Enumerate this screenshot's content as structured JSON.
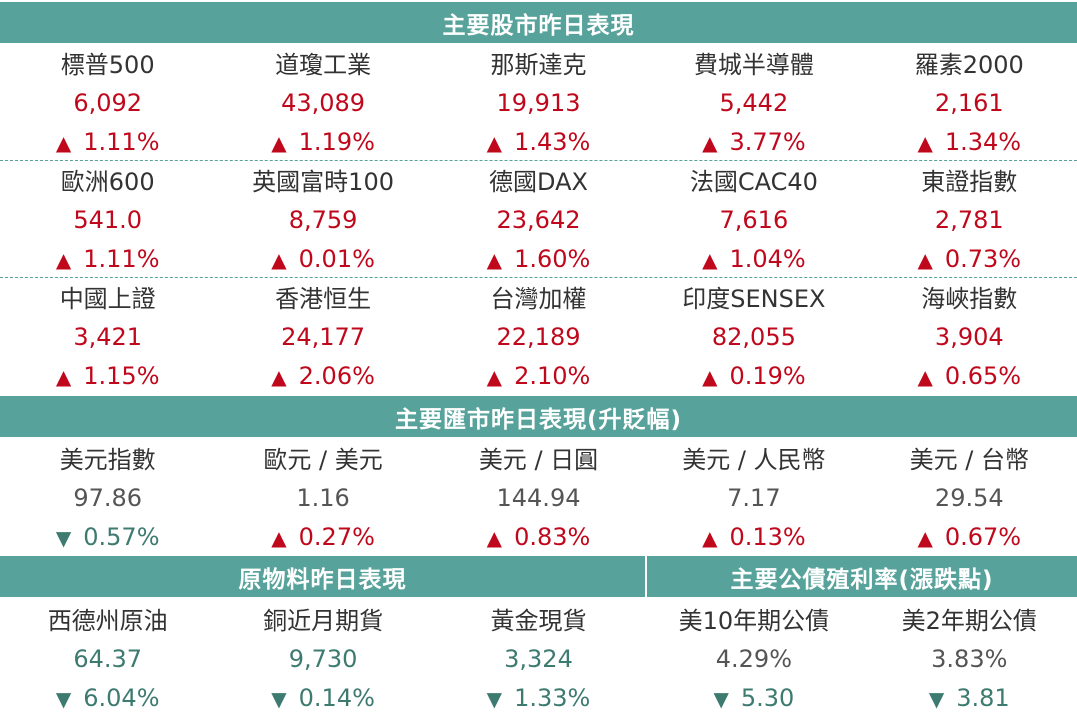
{
  "stocks": {
    "title": "主要股市昨日表現",
    "rows": [
      [
        {
          "name": "標普500",
          "value": "6,092",
          "change": "1.11%",
          "dir": "up"
        },
        {
          "name": "道瓊工業",
          "value": "43,089",
          "change": "1.19%",
          "dir": "up"
        },
        {
          "name": "那斯達克",
          "value": "19,913",
          "change": "1.43%",
          "dir": "up"
        },
        {
          "name": "費城半導體",
          "value": "5,442",
          "change": "3.77%",
          "dir": "up"
        },
        {
          "name": "羅素2000",
          "value": "2,161",
          "change": "1.34%",
          "dir": "up"
        }
      ],
      [
        {
          "name": "歐洲600",
          "value": "541.0",
          "change": "1.11%",
          "dir": "up"
        },
        {
          "name": "英國富時100",
          "value": "8,759",
          "change": "0.01%",
          "dir": "up"
        },
        {
          "name": "德國DAX",
          "value": "23,642",
          "change": "1.60%",
          "dir": "up"
        },
        {
          "name": "法國CAC40",
          "value": "7,616",
          "change": "1.04%",
          "dir": "up"
        },
        {
          "name": "東證指數",
          "value": "2,781",
          "change": "0.73%",
          "dir": "up"
        }
      ],
      [
        {
          "name": "中國上證",
          "value": "3,421",
          "change": "1.15%",
          "dir": "up"
        },
        {
          "name": "香港恒生",
          "value": "24,177",
          "change": "2.06%",
          "dir": "up"
        },
        {
          "name": "台灣加權",
          "value": "22,189",
          "change": "2.10%",
          "dir": "up"
        },
        {
          "name": "印度SENSEX",
          "value": "82,055",
          "change": "0.19%",
          "dir": "up"
        },
        {
          "name": "海峽指數",
          "value": "3,904",
          "change": "0.65%",
          "dir": "up"
        }
      ]
    ]
  },
  "fx": {
    "title": "主要匯市昨日表現(升貶幅)",
    "items": [
      {
        "name": "美元指數",
        "value": "97.86",
        "change": "0.57%",
        "dir": "down"
      },
      {
        "name": "歐元 / 美元",
        "value": "1.16",
        "change": "0.27%",
        "dir": "up"
      },
      {
        "name": "美元 / 日圓",
        "value": "144.94",
        "change": "0.83%",
        "dir": "up"
      },
      {
        "name": "美元 / 人民幣",
        "value": "7.17",
        "change": "0.13%",
        "dir": "up"
      },
      {
        "name": "美元 / 台幣",
        "value": "29.54",
        "change": "0.67%",
        "dir": "up"
      }
    ]
  },
  "commodities": {
    "title": "原物料昨日表現",
    "items": [
      {
        "name": "西德州原油",
        "value": "64.37",
        "change": "6.04%",
        "dir": "down"
      },
      {
        "name": "銅近月期貨",
        "value": "9,730",
        "change": "0.14%",
        "dir": "down"
      },
      {
        "name": "黃金現貨",
        "value": "3,324",
        "change": "1.33%",
        "dir": "down"
      }
    ]
  },
  "bonds": {
    "title": "主要公債殖利率(漲跌點)",
    "items": [
      {
        "name": "美10年期公債",
        "value": "4.29%",
        "change": "5.30",
        "dir": "down"
      },
      {
        "name": "美2年期公債",
        "value": "3.83%",
        "change": "3.81",
        "dir": "down"
      }
    ]
  },
  "colors": {
    "header": "#57a39b",
    "up": "#c0081c",
    "down": "#3d7a70"
  },
  "icons": {
    "up": "up-triangle-icon",
    "down": "down-triangle-icon"
  }
}
